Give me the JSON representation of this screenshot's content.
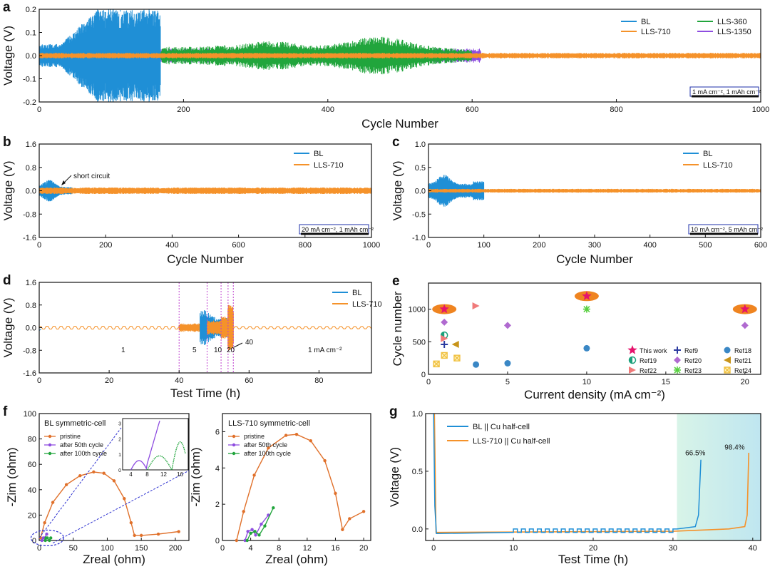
{
  "colors": {
    "BL": "#1f8fd6",
    "LLS-710": "#f5922a",
    "LLS-360": "#21a53c",
    "LLS-1350": "#8e4de0",
    "axis": "#111111",
    "cond_border": "#1d2fa8",
    "guide": "#c040d0",
    "star": "#e5136c",
    "ellipse": "#ef8420"
  },
  "chart_data": [
    {
      "id": "a",
      "type": "line",
      "panel_label": "a",
      "xlabel": "Cycle Number",
      "ylabel": "Voltage (V)",
      "xlim": [
        0,
        1000
      ],
      "ylim": [
        -0.2,
        0.2
      ],
      "xticks": [
        "0",
        "200",
        "400",
        "600",
        "800",
        "1000"
      ],
      "yticks": [
        "0.2",
        "0.1",
        "0.0",
        "-0.1",
        "-0.2"
      ],
      "series": [
        {
          "name": "BL",
          "end_cycle": 168,
          "peak_voltage": 0.2
        },
        {
          "name": "LLS-360",
          "end_cycle": 600
        },
        {
          "name": "LLS-1350",
          "end_cycle": 610
        },
        {
          "name": "LLS-710",
          "end_cycle": 1000
        }
      ],
      "legend": [
        "BL",
        "LLS-360",
        "LLS-710",
        "LLS-1350"
      ],
      "condition": "1 mA cm⁻², 1 mAh cm⁻²"
    },
    {
      "id": "b",
      "type": "line",
      "panel_label": "b",
      "xlabel": "Cycle Number",
      "ylabel": "Voltage (V)",
      "xlim": [
        0,
        1000
      ],
      "ylim": [
        -1.6,
        1.6
      ],
      "xticks": [
        "0",
        "200",
        "400",
        "600",
        "800",
        "1000"
      ],
      "yticks": [
        "1.6",
        "0.8",
        "0.0",
        "-0.8",
        "-1.6"
      ],
      "series": [
        {
          "name": "BL",
          "end_cycle": 100
        },
        {
          "name": "LLS-710",
          "end_cycle": 1000
        }
      ],
      "annotation": "short circuit",
      "condition": "20 mA cm⁻², 1 mAh cm⁻²"
    },
    {
      "id": "c",
      "type": "line",
      "panel_label": "c",
      "xlabel": "Cycle Number",
      "ylabel": "Voltage (V)",
      "xlim": [
        0,
        600
      ],
      "ylim": [
        -1.0,
        1.0
      ],
      "xticks": [
        "0",
        "100",
        "200",
        "300",
        "400",
        "500",
        "600"
      ],
      "yticks": [
        "1.0",
        "0.5",
        "0.0",
        "-0.5",
        "-1.0"
      ],
      "series": [
        {
          "name": "BL",
          "end_cycle": 100
        },
        {
          "name": "LLS-710",
          "end_cycle": 600
        }
      ],
      "condition": "10 mA cm⁻², 5 mAh cm⁻²"
    },
    {
      "id": "d",
      "type": "line",
      "panel_label": "d",
      "xlabel": "Test Time (h)",
      "ylabel": "Voltage (V)",
      "xlim": [
        0,
        95
      ],
      "ylim": [
        -1.6,
        1.6
      ],
      "xticks": [
        "0",
        "20",
        "40",
        "60",
        "80"
      ],
      "yticks": [
        "1.6",
        "0.8",
        "0.0",
        "-0.8",
        "-1.6"
      ],
      "series": [
        {
          "name": "BL"
        },
        {
          "name": "LLS-710"
        }
      ],
      "rate_labels": [
        "1",
        "5",
        "10",
        "20",
        "40",
        "1 mA cm⁻²"
      ],
      "segment_times": [
        40,
        48,
        52,
        54,
        55.5
      ]
    },
    {
      "id": "e",
      "type": "scatter",
      "panel_label": "e",
      "xlabel": "Current density (mA cm⁻²)",
      "ylabel": "Cycle number",
      "xlim": [
        0,
        21
      ],
      "ylim": [
        0,
        1400
      ],
      "xticks": [
        "0",
        "5",
        "10",
        "15",
        "20"
      ],
      "yticks": [
        "0",
        "500",
        "1000"
      ],
      "series": [
        {
          "name": "This work",
          "marker": "star",
          "color": "#e5136c",
          "x": [
            1,
            10,
            20
          ],
          "y": [
            1000,
            1200,
            1000
          ]
        },
        {
          "name": "Ref9",
          "marker": "plus",
          "color": "#2b3aa0",
          "x": [
            1
          ],
          "y": [
            460
          ]
        },
        {
          "name": "Ref18",
          "marker": "circle",
          "color": "#3a87c5",
          "x": [
            3,
            5,
            10
          ],
          "y": [
            150,
            170,
            400
          ]
        },
        {
          "name": "Ref19",
          "marker": "halfcircle",
          "color": "#1aa07a",
          "x": [
            1
          ],
          "y": [
            600
          ]
        },
        {
          "name": "Ref20",
          "marker": "diamond",
          "color": "#b06ad0",
          "x": [
            1,
            5,
            20
          ],
          "y": [
            800,
            750,
            750
          ]
        },
        {
          "name": "Ref21",
          "marker": "triangle-left",
          "color": "#c8941a",
          "x": [
            1.7
          ],
          "y": [
            460
          ]
        },
        {
          "name": "Ref22",
          "marker": "triangle-right",
          "color": "#f07a7a",
          "x": [
            1,
            3
          ],
          "y": [
            550,
            1050
          ]
        },
        {
          "name": "Ref23",
          "marker": "asterisk",
          "color": "#58d040",
          "x": [
            10
          ],
          "y": [
            1000
          ]
        },
        {
          "name": "Ref24",
          "marker": "xsquare",
          "color": "#f0c040",
          "x": [
            0.5,
            1,
            1.8
          ],
          "y": [
            160,
            290,
            250
          ]
        }
      ]
    },
    {
      "id": "f1",
      "type": "line",
      "panel_label": "f",
      "title": "BL symmetric-cell",
      "xlabel": "Zreal (ohm)",
      "ylabel": "-Zim (ohm)",
      "xlim": [
        0,
        220
      ],
      "ylim": [
        0,
        100
      ],
      "xticks": [
        "0",
        "50",
        "100",
        "150",
        "200"
      ],
      "yticks": [
        "0",
        "20",
        "40",
        "60",
        "80",
        "100"
      ],
      "series": [
        {
          "name": "pristine",
          "color": "#e0702a",
          "points": [
            [
              2,
              2
            ],
            [
              8,
              14
            ],
            [
              20,
              30
            ],
            [
              40,
              44
            ],
            [
              60,
              51
            ],
            [
              80,
              54
            ],
            [
              95,
              53
            ],
            [
              110,
              47
            ],
            [
              125,
              33
            ],
            [
              135,
              14
            ],
            [
              140,
              4
            ],
            [
              150,
              4
            ],
            [
              175,
              5
            ],
            [
              205,
              7
            ]
          ]
        },
        {
          "name": "after 50th cycle",
          "color": "#8e4de0",
          "points": [
            [
              4,
              0
            ],
            [
              6,
              2
            ],
            [
              8,
              2
            ],
            [
              11,
              5
            ]
          ]
        },
        {
          "name": "after 100th cycle",
          "color": "#21a53c",
          "points": [
            [
              9,
              0
            ],
            [
              10,
              2
            ],
            [
              12,
              2
            ],
            [
              15,
              0
            ],
            [
              17,
              2
            ]
          ]
        }
      ],
      "inset": {
        "xticks": [
          "4",
          "8",
          "12",
          "16"
        ],
        "yticks": [
          "0",
          "1",
          "2",
          "3"
        ]
      }
    },
    {
      "id": "f2",
      "type": "line",
      "panel_label": "",
      "title": "LLS-710 symmetric-cell",
      "xlabel": "Zreal (ohm)",
      "ylabel": "-Zim (ohm)",
      "xlim": [
        0,
        21
      ],
      "ylim": [
        0,
        7
      ],
      "xticks": [
        "0",
        "4",
        "8",
        "12",
        "16",
        "20"
      ],
      "yticks": [
        "0",
        "2",
        "4",
        "6"
      ],
      "series": [
        {
          "name": "pristine",
          "color": "#e0702a",
          "points": [
            [
              2,
              0
            ],
            [
              3,
              1.6
            ],
            [
              4.5,
              3.6
            ],
            [
              6.5,
              5.1
            ],
            [
              9,
              5.8
            ],
            [
              10.5,
              5.85
            ],
            [
              12.5,
              5.5
            ],
            [
              14.5,
              4.4
            ],
            [
              16,
              2.6
            ],
            [
              17,
              0.6
            ],
            [
              18,
              1.2
            ],
            [
              20,
              1.6
            ]
          ]
        },
        {
          "name": "after 50th cycle",
          "color": "#8e4de0",
          "points": [
            [
              3.2,
              0
            ],
            [
              3.6,
              0.5
            ],
            [
              4.2,
              0.6
            ],
            [
              4.7,
              0.3
            ],
            [
              5.5,
              0.9
            ],
            [
              6.5,
              1.4
            ]
          ]
        },
        {
          "name": "after 100th cycle",
          "color": "#21a53c",
          "points": [
            [
              3.5,
              0
            ],
            [
              4,
              0.4
            ],
            [
              4.6,
              0.5
            ],
            [
              5.2,
              0.3
            ],
            [
              6,
              0.8
            ],
            [
              7.2,
              1.8
            ]
          ]
        }
      ]
    },
    {
      "id": "g",
      "type": "line",
      "panel_label": "g",
      "xlabel": "Test Time (h)",
      "ylabel": "Voltage (V)",
      "xlim": [
        -1,
        41
      ],
      "ylim": [
        -0.1,
        1.0
      ],
      "xticks": [
        "0",
        "10",
        "20",
        "30",
        "40"
      ],
      "yticks": [
        "0.0",
        "0.5",
        "1.0"
      ],
      "series": [
        {
          "name": "BL || Cu half-cell",
          "color": "#1f8fd6",
          "end_time": 33.5,
          "efficiency_label": "66.5%"
        },
        {
          "name": "LLS-710 || Cu half-cell",
          "color": "#f5922a",
          "end_time": 39.5,
          "efficiency_label": "98.4%"
        }
      ]
    }
  ]
}
